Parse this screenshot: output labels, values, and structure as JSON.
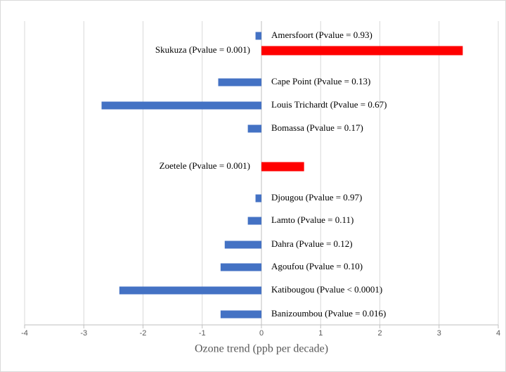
{
  "chart_data": {
    "type": "barh",
    "x_label": "Ozone trend (ppb per decade)",
    "categories": [
      "Amersfoort (Pvalue = 0.93)",
      "Skukuza (Pvalue = 0.001)",
      "Cape Point (Pvalue = 0.13)",
      "Louis Trichardt  (Pvalue = 0.67)",
      "Bomassa (Pvalue = 0.17)",
      "Zoetele (Pvalue = 0.001)",
      "Djougou (Pvalue = 0.97)",
      "Lamto (Pvalue = 0.11)",
      "Dahra (Pvalue = 0.12)",
      "Agoufou (Pvalue = 0.10)",
      "Katibougou (Pvalue < 0.0001)",
      "Banizoumbou (Pvalue = 0.016)"
    ],
    "values": [
      -0.1,
      3.4,
      -0.73,
      -2.7,
      -0.23,
      0.72,
      -0.1,
      -0.23,
      -0.62,
      -0.69,
      -2.4,
      -0.69
    ],
    "colors": [
      "#4472c4",
      "#ff0000",
      "#4472c4",
      "#4472c4",
      "#4472c4",
      "#ff0000",
      "#4472c4",
      "#4472c4",
      "#4472c4",
      "#4472c4",
      "#4472c4",
      "#4472c4"
    ],
    "xlim": [
      -4,
      4
    ],
    "xticks": [
      -4,
      -3,
      -2,
      -1,
      0,
      1,
      2,
      3,
      4
    ],
    "grid": true
  }
}
